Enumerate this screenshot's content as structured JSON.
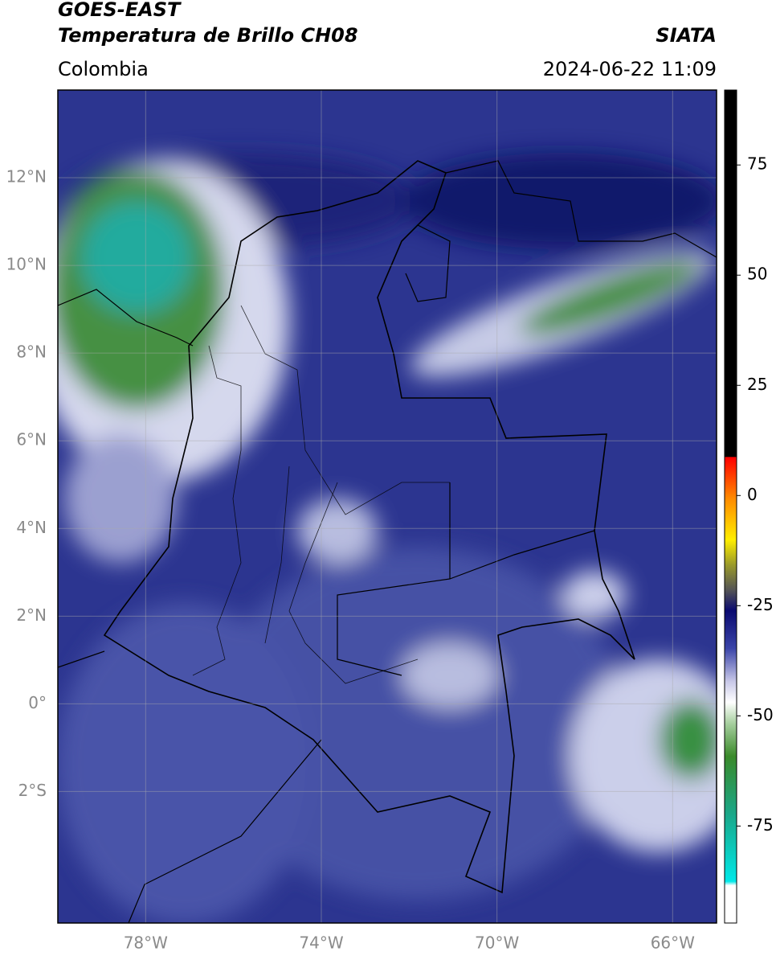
{
  "chart_data": {
    "type": "map",
    "title": "GOES-EAST",
    "subtitle": "Temperatura de Brillo CH08",
    "source": "SIATA",
    "region": "Colombia",
    "datetime": "2024-06-22 11:09",
    "xlim": [
      -80,
      -65
    ],
    "ylim": [
      -5,
      14
    ],
    "xticks": [
      {
        "value": -78,
        "label": "78°W"
      },
      {
        "value": -74,
        "label": "74°W"
      },
      {
        "value": -70,
        "label": "70°W"
      },
      {
        "value": -66,
        "label": "66°W"
      }
    ],
    "yticks": [
      {
        "value": 12,
        "label": "12°N"
      },
      {
        "value": 10,
        "label": "10°N"
      },
      {
        "value": 8,
        "label": "8°N"
      },
      {
        "value": 6,
        "label": "6°N"
      },
      {
        "value": 4,
        "label": "4°N"
      },
      {
        "value": 2,
        "label": "2°N"
      },
      {
        "value": 0,
        "label": "0°"
      },
      {
        "value": -2,
        "label": "2°S"
      }
    ],
    "grid": true,
    "colorbar": {
      "lim": [
        -97,
        92
      ],
      "ticks": [
        75,
        50,
        25,
        0,
        -25,
        -50,
        -75
      ]
    }
  }
}
